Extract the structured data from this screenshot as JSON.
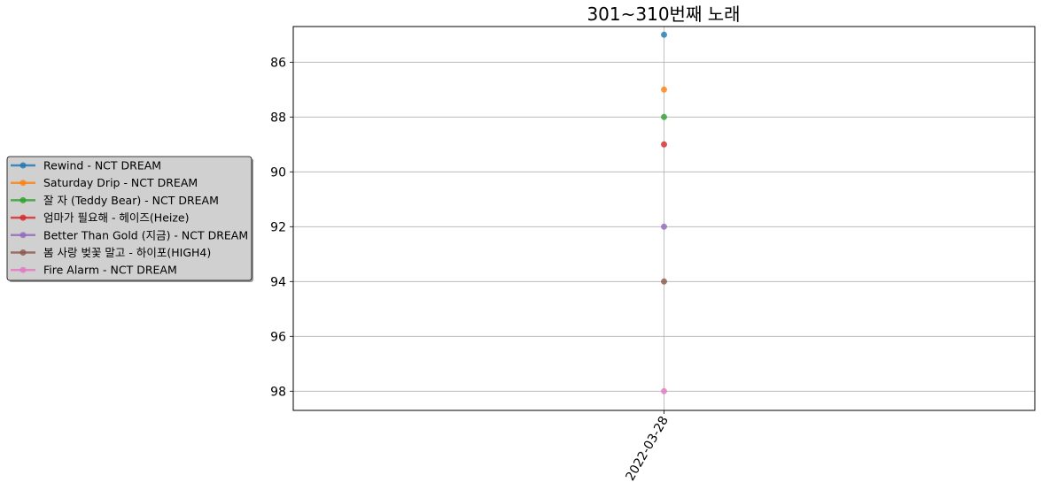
{
  "chart_data": {
    "type": "line",
    "title": "301~310번째 노래",
    "xlabel": "",
    "ylabel": "",
    "x": [
      "2022-03-28"
    ],
    "y_inverted": true,
    "ylim": [
      84.7,
      98.7
    ],
    "yticks": [
      86,
      88,
      90,
      92,
      94,
      96,
      98
    ],
    "grid": true,
    "legend_position": "left-outside",
    "series": [
      {
        "name": "Rewind - NCT DREAM",
        "values": [
          85
        ],
        "color": "#1f77b4"
      },
      {
        "name": "Saturday Drip - NCT DREAM",
        "values": [
          87
        ],
        "color": "#ff7f0e"
      },
      {
        "name": "잘 자 (Teddy Bear) - NCT DREAM",
        "values": [
          88
        ],
        "color": "#2ca02c"
      },
      {
        "name": "엄마가 필요해 - 헤이즈(Heize)",
        "values": [
          89
        ],
        "color": "#d62728"
      },
      {
        "name": "Better Than Gold (지금) - NCT DREAM",
        "values": [
          92
        ],
        "color": "#9467bd"
      },
      {
        "name": "봄 사랑 벚꽃 말고 - 하이포(HIGH4)",
        "values": [
          94
        ],
        "color": "#8c564b"
      },
      {
        "name": "Fire Alarm - NCT DREAM",
        "values": [
          98
        ],
        "color": "#e377c2"
      }
    ]
  }
}
